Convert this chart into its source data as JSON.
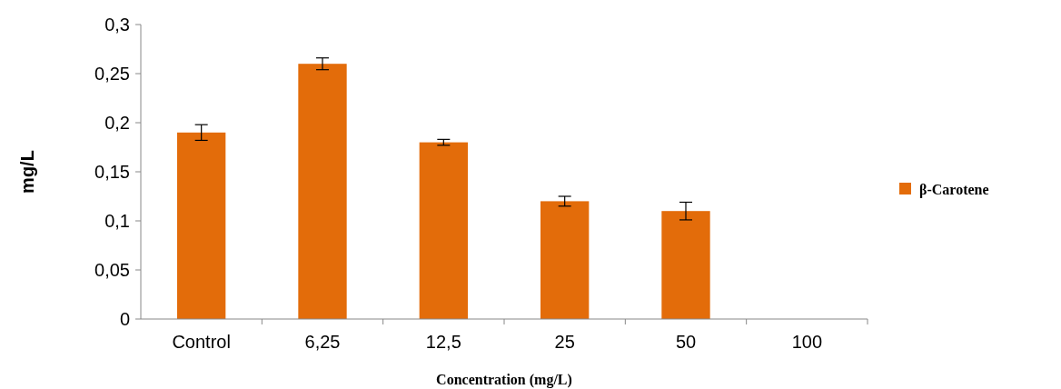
{
  "chart_data": {
    "type": "bar",
    "xlabel": "Concentration (mg/L)",
    "ylabel": "mg/L",
    "categories": [
      "Control",
      "6,25",
      "12,5",
      "25",
      "50",
      "100"
    ],
    "series": [
      {
        "name": "β-Carotene",
        "color": "#e36c0a",
        "values": [
          0.19,
          0.26,
          0.18,
          0.12,
          0.11,
          0
        ],
        "errors": [
          0.008,
          0.006,
          0.003,
          0.005,
          0.009,
          null
        ]
      }
    ],
    "ylim": [
      0,
      0.3
    ],
    "yticks": [
      0,
      {
        "value": 0.05,
        "label": "0,05"
      },
      {
        "value": 0.1,
        "label": "0,1"
      },
      {
        "value": 0.15,
        "label": "0,15"
      },
      {
        "value": 0.2,
        "label": "0,2"
      },
      {
        "value": 0.25,
        "label": "0,25"
      },
      {
        "value": 0.3,
        "label": "0,3"
      }
    ],
    "legend": "right",
    "grid": false
  }
}
